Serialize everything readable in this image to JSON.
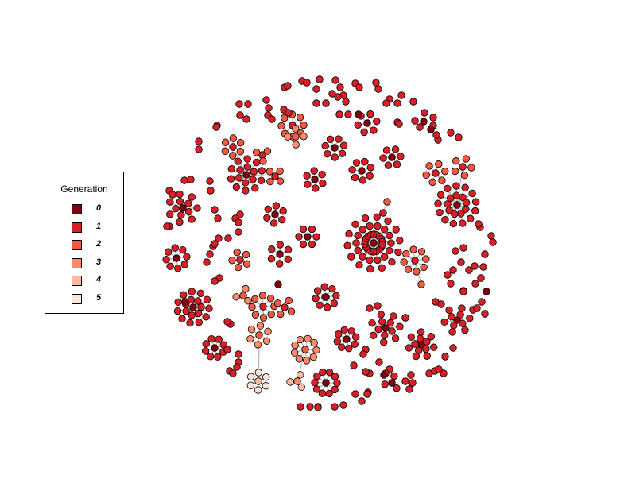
{
  "legend": {
    "title": "Generation",
    "items": [
      {
        "label": "0",
        "color": "#800010"
      },
      {
        "label": "1",
        "color": "#d62128"
      },
      {
        "label": "2",
        "color": "#f05a42"
      },
      {
        "label": "3",
        "color": "#fb8b6a"
      },
      {
        "label": "4",
        "color": "#fcbba1"
      },
      {
        "label": "5",
        "color": "#fee5d9"
      }
    ]
  },
  "colors": {
    "node_stroke": "#000000",
    "edge": "#b3b3b3"
  }
}
